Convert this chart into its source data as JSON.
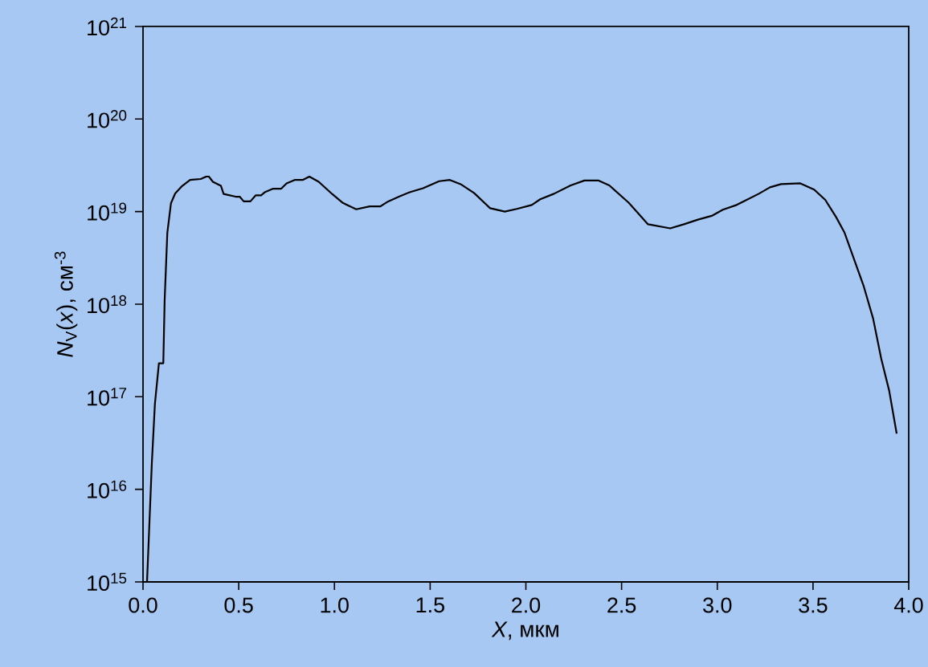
{
  "chart_data": {
    "type": "line",
    "xlabel": "*X*, мкм",
    "ylabel": "*N*$_{V}$(*x*), см$^{-3}$",
    "log": "y",
    "color": "#000000",
    "marker": "none",
    "line_style": "solid",
    "xlim": [
      0,
      4
    ],
    "ylim": [
      1000000000000000.0,
      1e+21
    ],
    "xticks": [
      {
        "value": 0,
        "label": "0.0"
      },
      {
        "value": 0.5,
        "label": "0.5"
      },
      {
        "value": 1,
        "label": "1.0"
      },
      {
        "value": 1.5,
        "label": "1.5"
      },
      {
        "value": 2,
        "label": "2.0"
      },
      {
        "value": 2.5,
        "label": "2.5"
      },
      {
        "value": 3,
        "label": "3.0"
      },
      {
        "value": 3.5,
        "label": "3.5"
      },
      {
        "value": 4,
        "label": "4.0"
      }
    ],
    "yticks": [
      {
        "value": 1000000000000000.0,
        "label": "10$^{15}$"
      },
      {
        "value": 1e+16,
        "label": "10$^{16}$"
      },
      {
        "value": 1e+17,
        "label": "10$^{17}$"
      },
      {
        "value": 1e+18,
        "label": "10$^{18}$"
      },
      {
        "value": 1e+19,
        "label": "10$^{19}$"
      },
      {
        "value": 1e+20,
        "label": "10$^{20}$"
      },
      {
        "value": 1e+21,
        "label": "10$^{21}$"
      }
    ],
    "x": [
      0.021,
      0.046,
      0.062,
      0.083,
      0.106,
      0.113,
      0.127,
      0.146,
      0.168,
      0.204,
      0.246,
      0.302,
      0.33,
      0.344,
      0.365,
      0.407,
      0.421,
      0.484,
      0.505,
      0.526,
      0.561,
      0.589,
      0.617,
      0.638,
      0.68,
      0.722,
      0.75,
      0.792,
      0.834,
      0.869,
      0.918,
      0.988,
      1.044,
      1.114,
      1.184,
      1.24,
      1.281,
      1.337,
      1.393,
      1.463,
      1.547,
      1.603,
      1.659,
      1.729,
      1.813,
      1.89,
      1.953,
      2.031,
      2.075,
      2.147,
      2.234,
      2.306,
      2.378,
      2.436,
      2.537,
      2.638,
      2.754,
      2.826,
      2.899,
      2.971,
      3.029,
      3.101,
      3.217,
      3.275,
      3.333,
      3.434,
      3.506,
      3.564,
      3.621,
      3.665,
      3.765,
      3.814,
      3.856,
      3.898,
      3.937
    ],
    "values": [
      1000000000000000.0,
      1.9e+16,
      8.3e+16,
      2.3e+17,
      2.3e+17,
      1.1e+18,
      5.9e+18,
      1.23e+19,
      1.57e+19,
      1.89e+19,
      2.2e+19,
      2.25e+19,
      2.39e+19,
      2.39e+19,
      2.1e+19,
      1.9e+19,
      1.55e+19,
      1.45e+19,
      1.45e+19,
      1.29e+19,
      1.29e+19,
      1.5e+19,
      1.5e+19,
      1.63e+19,
      1.77e+19,
      1.77e+19,
      2.02e+19,
      2.2e+19,
      2.2e+19,
      2.39e+19,
      2.1e+19,
      1.55e+19,
      1.24e+19,
      1.06e+19,
      1.14e+19,
      1.14e+19,
      1.29e+19,
      1.45e+19,
      1.62e+19,
      1.79e+19,
      2.13e+19,
      2.2e+19,
      1.98e+19,
      1.59e+19,
      1.09e+19,
      1e+19,
      1.07e+19,
      1.18e+19,
      1.36e+19,
      1.56e+19,
      1.92e+19,
      2.17e+19,
      2.17e+19,
      1.92e+19,
      1.25e+19,
      7.3e+18,
      6.6e+18,
      7.3e+18,
      8.2e+18,
      9e+18,
      1.05e+19,
      1.18e+19,
      1.56e+19,
      1.83e+19,
      1.98e+19,
      2.02e+19,
      1.73e+19,
      1.34e+19,
      8.7e+18,
      5.9e+18,
      1.56e+18,
      7e+17,
      2.6e+17,
      1.16e+17,
      4e+16
    ]
  }
}
